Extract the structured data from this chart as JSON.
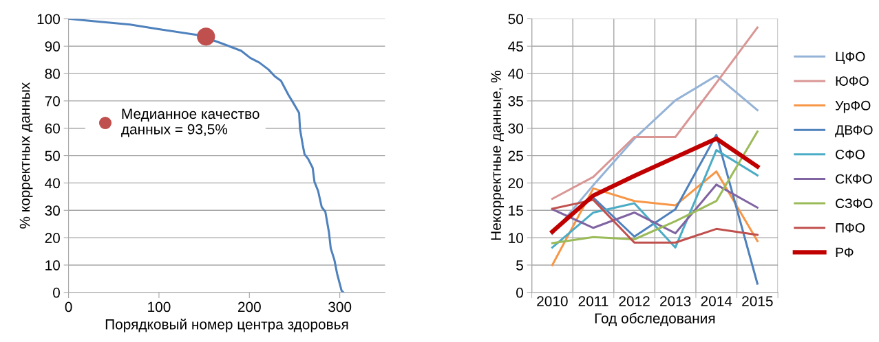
{
  "chart_data": [
    {
      "type": "line",
      "xlabel": "Порядковый номер центра здоровья",
      "ylabel": "% корректных данных",
      "xlim": [
        0,
        350
      ],
      "xticks": [
        0,
        100,
        200,
        300
      ],
      "ylim": [
        0,
        100
      ],
      "yticks": [
        0,
        10,
        20,
        30,
        40,
        50,
        60,
        70,
        80,
        90,
        100
      ],
      "grid": "y",
      "legend": "center left",
      "marker": "none",
      "series": [
        {
          "color": "#4f81bd",
          "x": [
            0,
            25,
            68,
            100,
            143,
            168,
            191,
            201,
            211,
            221,
            228,
            235,
            243,
            249,
            255,
            256,
            259,
            261,
            265,
            270,
            272,
            276,
            280,
            284,
            288,
            290,
            294,
            297,
            302,
            304
          ],
          "values": [
            100,
            99.2,
            97.9,
            96.2,
            94.1,
            91.2,
            88.3,
            85.7,
            84,
            81.5,
            79,
            77.3,
            72.3,
            69,
            65.6,
            59.7,
            53.9,
            50.5,
            48.8,
            45.5,
            40.4,
            37.1,
            31.2,
            29.5,
            22,
            16.1,
            11.9,
            6.9,
            0.6,
            0
          ]
        },
        {
          "type": "scatter",
          "marker": "circle",
          "name": "Медианное качество\nданных = 93,5%",
          "color": "#c0504d",
          "x": [
            152
          ],
          "values": [
            93.5
          ]
        }
      ]
    },
    {
      "type": "line",
      "xlabel": "Год обследования",
      "ylabel": "Некорректные данные, %",
      "categories": [
        "2010",
        "2011",
        "2012",
        "2013",
        "2014",
        "2015"
      ],
      "ylim": [
        0,
        50
      ],
      "yticks": [
        0,
        5,
        10,
        15,
        20,
        25,
        30,
        35,
        40,
        45,
        50
      ],
      "grid": true,
      "legend": "right",
      "marker": "none",
      "series": [
        {
          "name": "ЦФО",
          "color": "#95b3d7",
          "values": [
            10.7,
            19.6,
            28.1,
            35.1,
            39.6,
            33.3
          ]
        },
        {
          "name": "ЮФО",
          "color": "#d99694",
          "values": [
            17.1,
            21.1,
            28.4,
            28.4,
            38.3,
            48.4
          ]
        },
        {
          "name": "УрФО",
          "color": "#f79646",
          "values": [
            5.0,
            19.0,
            16.7,
            15.9,
            22.1,
            9.4
          ]
        },
        {
          "name": "ДВФО",
          "color": "#4f81bd",
          "values": [
            null,
            17.3,
            10.2,
            15.2,
            28.8,
            1.6
          ]
        },
        {
          "name": "СФО",
          "color": "#4bacc6",
          "values": [
            8.2,
            14.6,
            16.3,
            8.2,
            26.0,
            21.4
          ]
        },
        {
          "name": "СКФО",
          "color": "#8064a2",
          "values": [
            15.2,
            11.8,
            14.6,
            10.8,
            19.7,
            15.5
          ]
        },
        {
          "name": "СЗФО",
          "color": "#9bbb59",
          "values": [
            9.0,
            10.1,
            9.7,
            13.0,
            16.7,
            29.4
          ]
        },
        {
          "name": "ПФО",
          "color": "#c0504d",
          "values": [
            15.3,
            16.9,
            9.1,
            9.1,
            11.6,
            10.5
          ]
        },
        {
          "name": "РФ",
          "color": "#c00000",
          "values": [
            11.1,
            17.7,
            21.3,
            24.7,
            28.1,
            23.0
          ]
        }
      ]
    }
  ]
}
